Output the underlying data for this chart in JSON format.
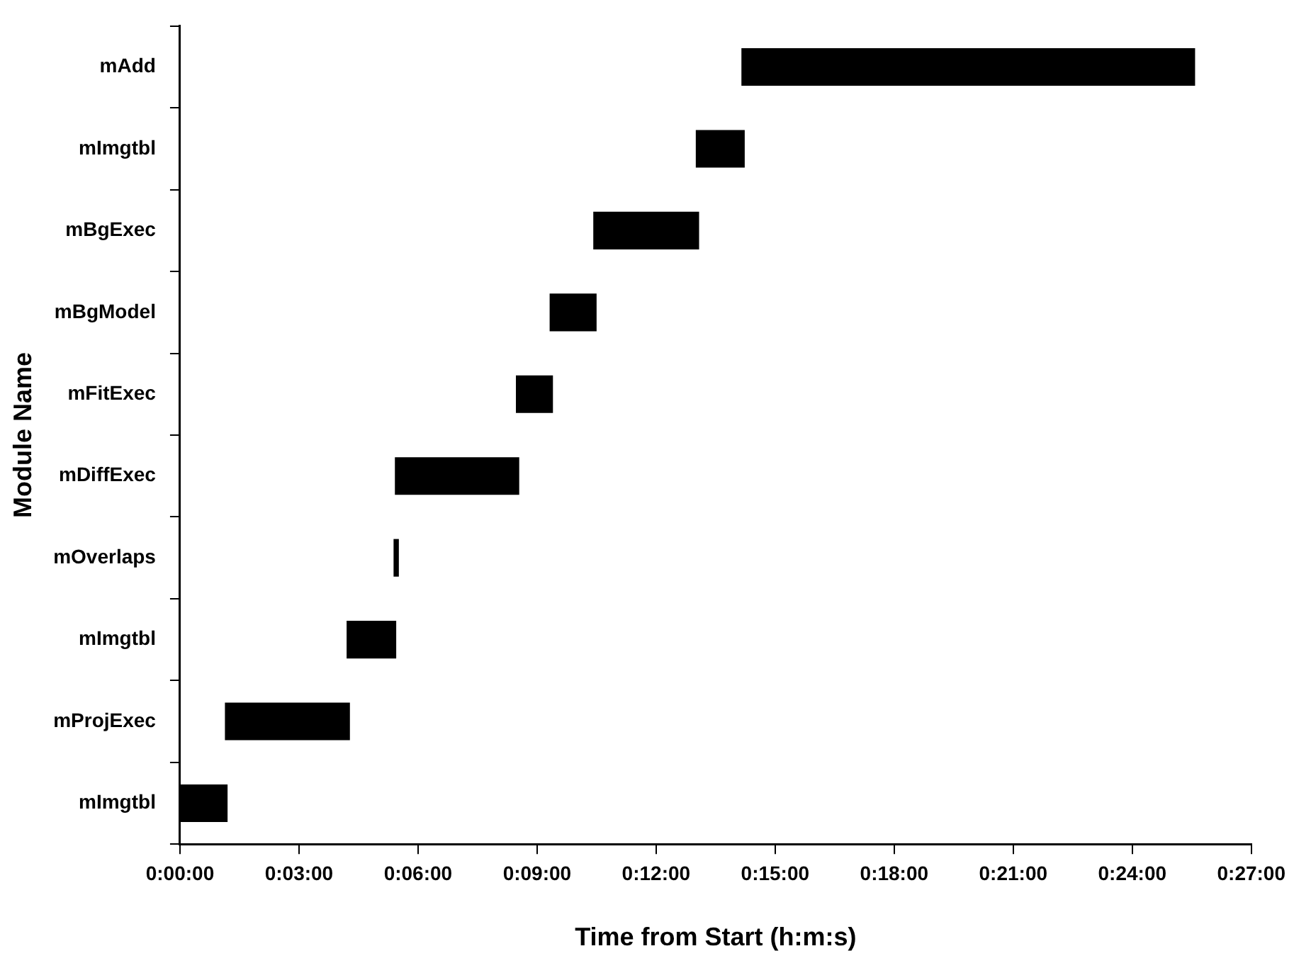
{
  "chart_data": {
    "type": "bar",
    "orientation": "horizontal",
    "xlabel": "Time from Start (h:m:s)",
    "ylabel": "Module Name",
    "categories": [
      "mAdd",
      "mImgtbl",
      "mBgExec",
      "mBgModel",
      "mFitExec",
      "mDiffExec",
      "mOverlaps",
      "mImgtbl",
      "mProjExec",
      "mImgtbl"
    ],
    "base": [
      849,
      780,
      625,
      559,
      508,
      325,
      323,
      252,
      68,
      0
    ],
    "values": [
      686,
      74,
      160,
      71,
      56,
      188,
      8,
      75,
      189,
      72
    ],
    "color": "#000000",
    "xlim": [
      0,
      1620
    ],
    "xticks": [
      {
        "value": 0,
        "label": "0:00:00"
      },
      {
        "value": 180,
        "label": "0:03:00"
      },
      {
        "value": 360,
        "label": "0:06:00"
      },
      {
        "value": 540,
        "label": "0:09:00"
      },
      {
        "value": 720,
        "label": "0:12:00"
      },
      {
        "value": 900,
        "label": "0:15:00"
      },
      {
        "value": 1080,
        "label": "0:18:00"
      },
      {
        "value": 1260,
        "label": "0:21:00"
      },
      {
        "value": 1440,
        "label": "0:24:00"
      },
      {
        "value": 1620,
        "label": "0:27:00"
      }
    ],
    "grid": false,
    "legend": false
  }
}
